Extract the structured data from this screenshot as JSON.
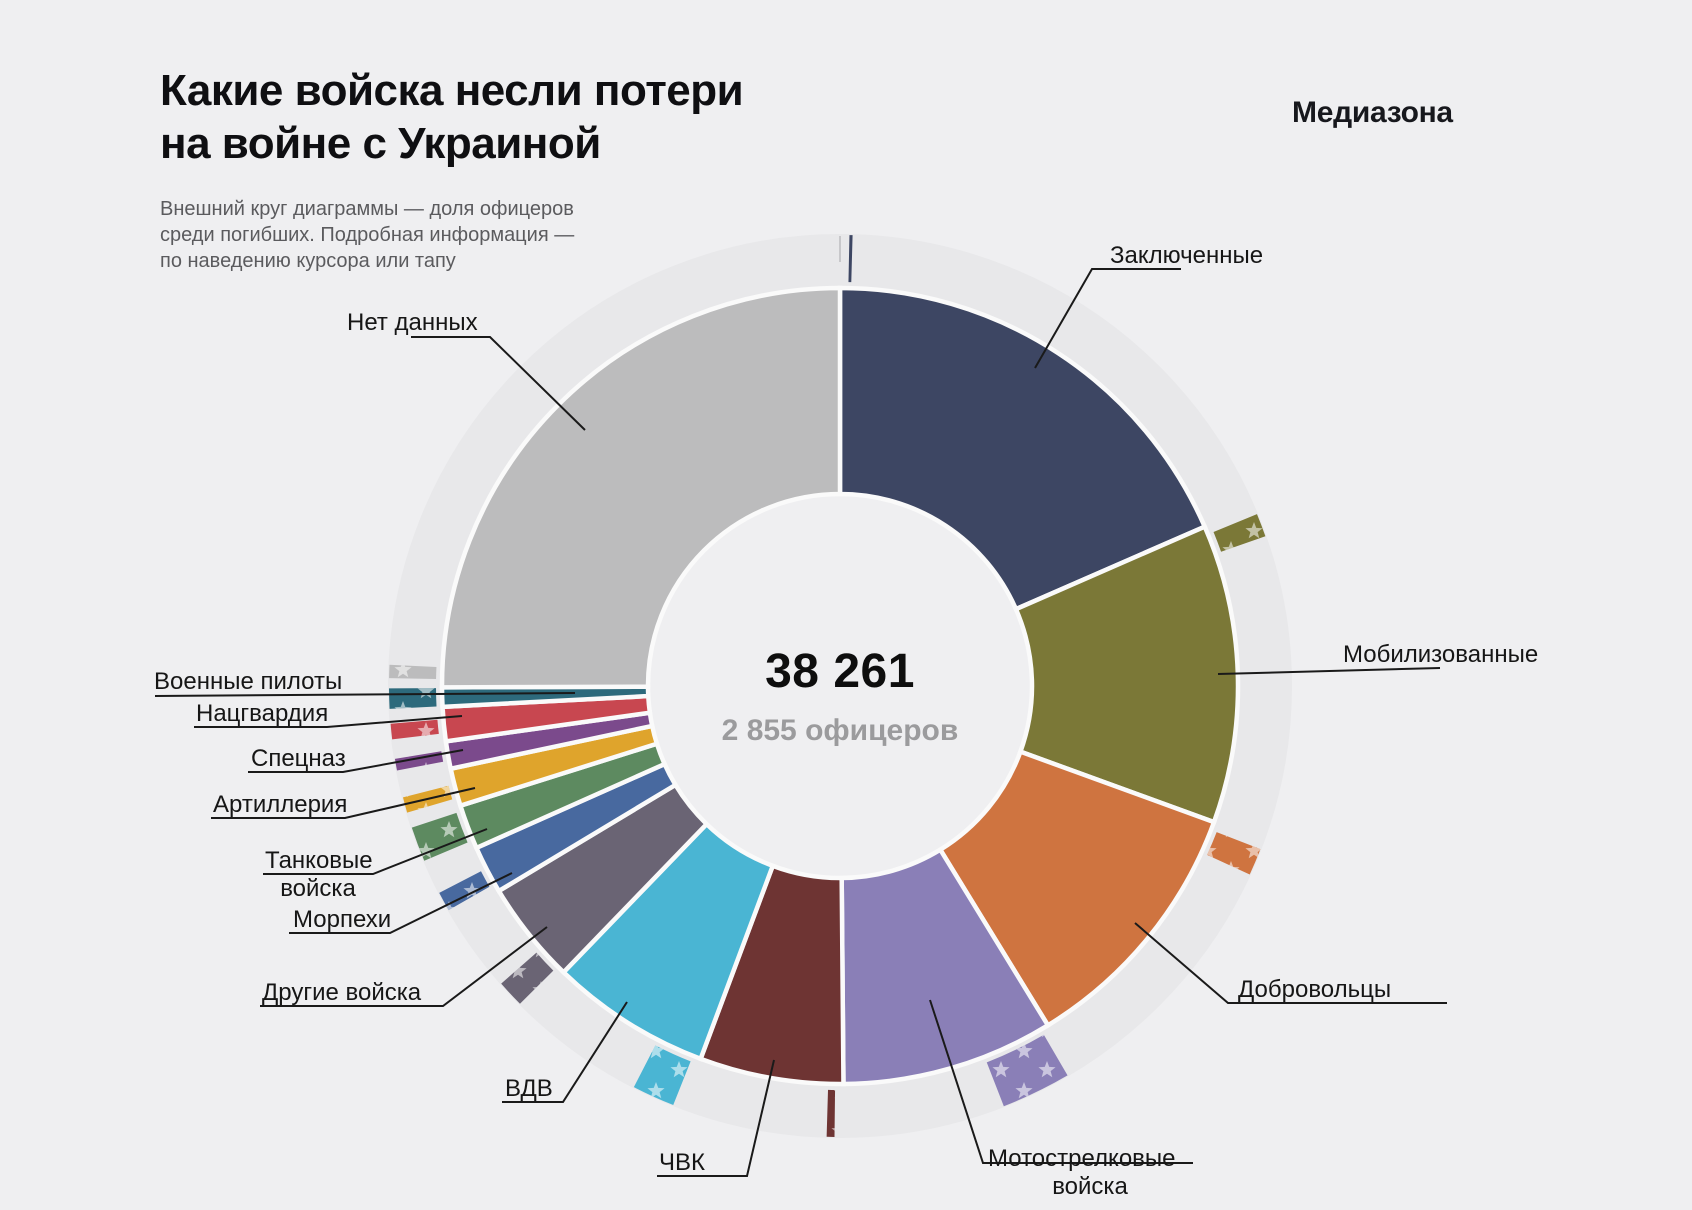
{
  "header": {
    "title": "Какие войска несли потери\nна войне с Украиной",
    "subtitle": "Внешний круг диаграммы — доля офицеров\nсреди погибших. Подробная информация —\nпо наведению курсора или тапу",
    "logo": "Медиазона"
  },
  "center": {
    "total": "38 261",
    "officers": "2 855 офицеров"
  },
  "chart_data": {
    "type": "pie",
    "subtype": "donut-with-officer-ring",
    "title": "Какие войска несли потери на войне с Украиной",
    "center_total": "38 261",
    "center_officers": "2 855 офицеров",
    "outer_ring_meaning": "доля офицеров среди погибших",
    "start_angle_deg": 0,
    "direction": "clockwise",
    "legend_position": "around-chart",
    "segments": [
      {
        "label": "Заключенные",
        "color": "#3d4663",
        "percent": 18.4,
        "angle_deg": 66.4,
        "officer_arc_deg": 0.4
      },
      {
        "label": "Мобилизованные",
        "color": "#7b7837",
        "percent": 12.1,
        "angle_deg": 43.6,
        "officer_arc_deg": 3.0
      },
      {
        "label": "Добровольцы",
        "color": "#cf7440",
        "percent": 10.7,
        "angle_deg": 38.5,
        "officer_arc_deg": 3.5
      },
      {
        "label": "Мотострелковые войска",
        "color": "#8a7fb7",
        "percent": 8.6,
        "angle_deg": 31.0,
        "officer_arc_deg": 9.0
      },
      {
        "label": "ЧВК",
        "color": "#6e3433",
        "percent": 5.8,
        "angle_deg": 21.0,
        "officer_arc_deg": 1.0
      },
      {
        "label": "ВДВ",
        "color": "#4ab5d3",
        "percent": 6.5,
        "angle_deg": 23.5,
        "officer_arc_deg": 5.5
      },
      {
        "label": "Другие войска",
        "color": "#6a6474",
        "percent": 4.2,
        "angle_deg": 15.0,
        "officer_arc_deg": 3.5
      },
      {
        "label": "Морпехи",
        "color": "#48699f",
        "percent": 1.9,
        "angle_deg": 7.0,
        "officer_arc_deg": 2.5
      },
      {
        "label": "Танковые войска",
        "color": "#5d8a60",
        "percent": 1.8,
        "angle_deg": 6.5,
        "officer_arc_deg": 4.5
      },
      {
        "label": "Артиллерия",
        "color": "#dfa42c",
        "percent": 1.5,
        "angle_deg": 5.5,
        "officer_arc_deg": 2.0
      },
      {
        "label": "Спецназ",
        "color": "#7b4a8c",
        "percent": 1.1,
        "angle_deg": 4.0,
        "officer_arc_deg": 1.5
      },
      {
        "label": "Нацгвардия",
        "color": "#c84750",
        "percent": 1.4,
        "angle_deg": 5.0,
        "officer_arc_deg": 2.0
      },
      {
        "label": "Военные пилоты",
        "color": "#2d6a7c",
        "percent": 0.8,
        "angle_deg": 2.8,
        "officer_arc_deg": 2.6
      },
      {
        "label": "Нет данных",
        "color": "#bcbcbd",
        "percent": 25.1,
        "angle_deg": 90.2,
        "officer_arc_deg": 1.7
      }
    ],
    "colors": {
      "background": "#efeff1",
      "officer_ring": "#e8e8ea",
      "gap_stroke": "#fafafa",
      "star_fill": "#ffffff"
    }
  }
}
